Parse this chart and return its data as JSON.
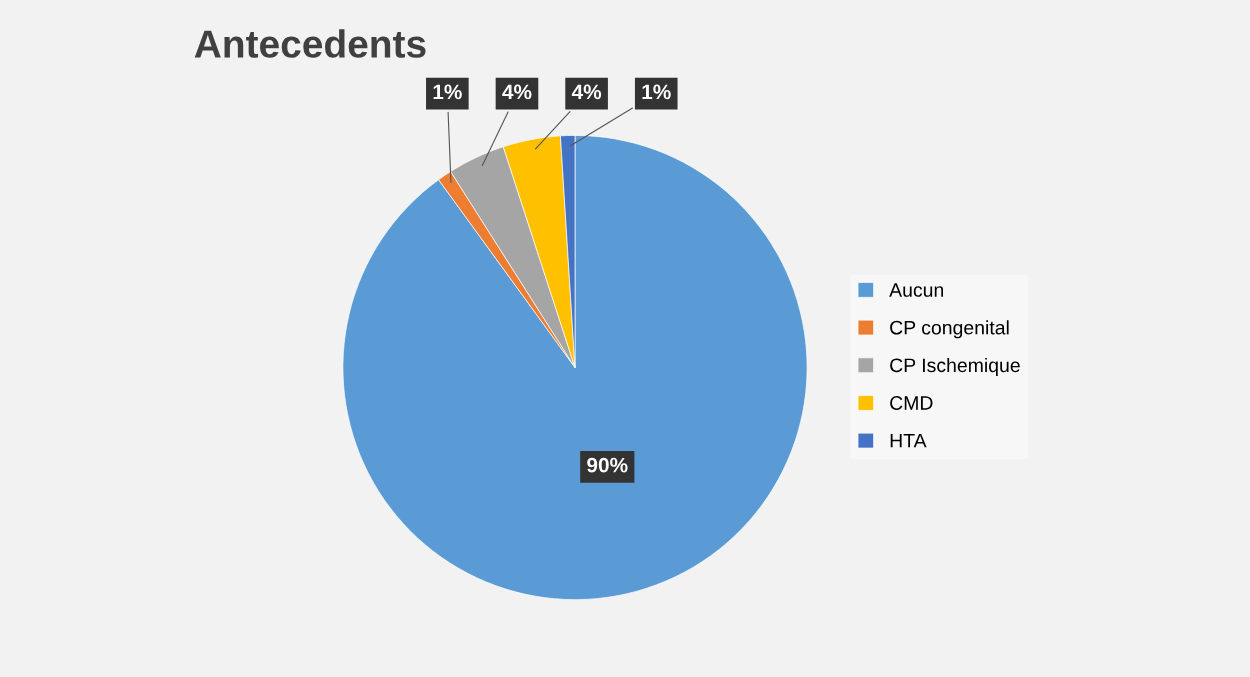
{
  "chart_data": {
    "type": "pie",
    "title": "Antecedents",
    "categories": [
      "Aucun",
      "CP congenital",
      "CP Ischemique",
      "CMD",
      "HTA"
    ],
    "values": [
      90,
      1,
      4,
      4,
      1
    ],
    "colors": [
      "#5b9bd5",
      "#ed7d31",
      "#a5a5a5",
      "#ffc000",
      "#4472c4"
    ],
    "value_labels": [
      "90%",
      "1%",
      "4%",
      "4%",
      "1%"
    ],
    "legend": "right"
  }
}
